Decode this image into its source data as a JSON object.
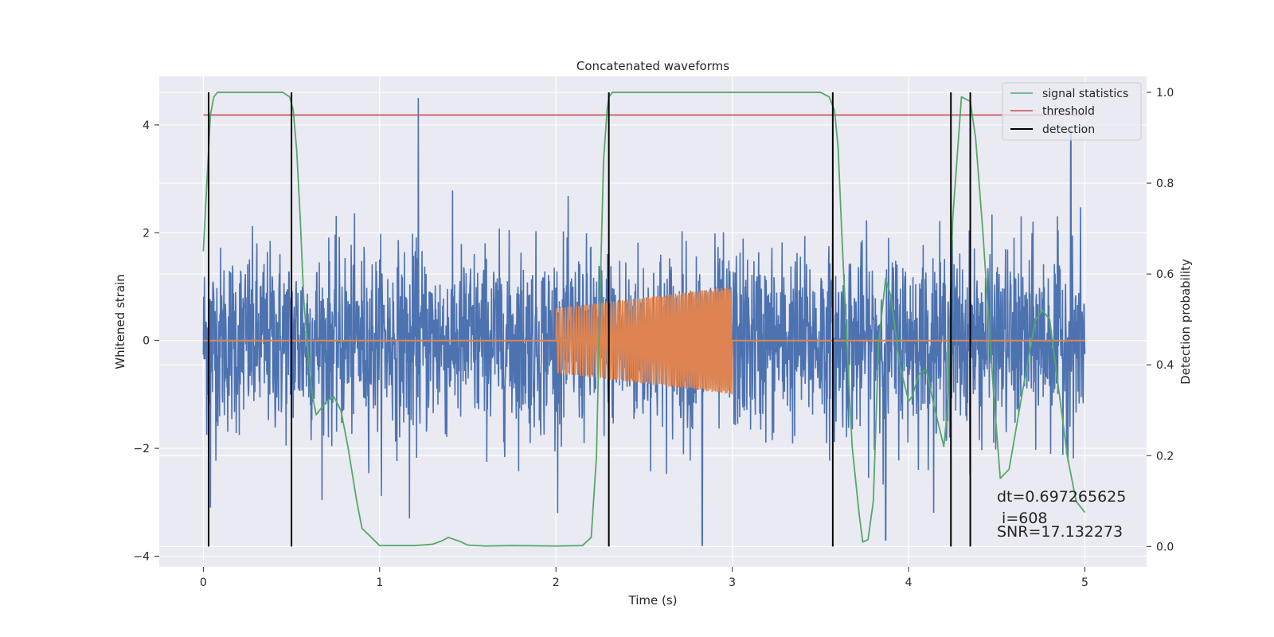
{
  "chart_data": {
    "type": "line",
    "title": "Concatenated waveforms",
    "xlabel": "Time (s)",
    "ylabel": "Whitened strain",
    "y2label": "Detection probability",
    "xlim": [
      -0.25,
      5.35
    ],
    "ylim": [
      -4.2,
      4.9
    ],
    "y2lim": [
      -0.045,
      1.035
    ],
    "xticks": [
      0,
      1,
      2,
      3,
      4,
      5
    ],
    "yticks": [
      -4,
      -2,
      0,
      2,
      4
    ],
    "y2ticks": [
      0.0,
      0.2,
      0.4,
      0.6,
      0.8,
      1.0
    ],
    "xtick_labels": [
      "0",
      "1",
      "2",
      "3",
      "4",
      "5"
    ],
    "ytick_labels": [
      "−4",
      "−2",
      "0",
      "2",
      "4"
    ],
    "y2tick_labels": [
      "0.0",
      "0.2",
      "0.4",
      "0.6",
      "0.8",
      "1.0"
    ],
    "grid": true,
    "legend_position": "top-right",
    "colors": {
      "background": "#eaeaf2",
      "grid": "#ffffff",
      "noise": "#4c72b0",
      "injection": "#dd8452",
      "signal_statistics": "#55a868",
      "threshold": "#c44e52",
      "detection": "#000000"
    },
    "series": [
      {
        "name": "",
        "axis": "left",
        "kind": "noise",
        "x_range": [
          0,
          5
        ],
        "typical_amplitude": 1.5,
        "peak_max": 4.5,
        "peak_min": -3.8,
        "notable_peaks": [
          [
            1.22,
            4.5
          ],
          [
            4.92,
            3.9
          ],
          [
            2.83,
            -3.8
          ],
          [
            1.17,
            -3.3
          ],
          [
            3.87,
            -3.7
          ],
          [
            0.04,
            -3.1
          ]
        ]
      },
      {
        "name": "",
        "axis": "left",
        "kind": "chirp",
        "x_range": [
          2.0,
          3.0
        ],
        "amplitude_start": 0.6,
        "amplitude_end": 1.0,
        "baseline": 0
      },
      {
        "name": "signal statistics",
        "axis": "right",
        "x": [
          0,
          0.02,
          0.04,
          0.06,
          0.08,
          0.1,
          0.15,
          0.3,
          0.45,
          0.49,
          0.51,
          0.53,
          0.55,
          0.57,
          0.6,
          0.62,
          0.64,
          0.66,
          0.7,
          0.74,
          0.78,
          0.82,
          0.87,
          0.9,
          1.0,
          1.2,
          1.3,
          1.35,
          1.39,
          1.45,
          1.5,
          1.6,
          1.75,
          2.0,
          2.15,
          2.2,
          2.23,
          2.25,
          2.27,
          2.29,
          2.3,
          2.32,
          2.36,
          2.5,
          3.0,
          3.5,
          3.55,
          3.58,
          3.6,
          3.62,
          3.65,
          3.68,
          3.72,
          3.74,
          3.77,
          3.8,
          3.83,
          3.87,
          3.9,
          3.95,
          4.0,
          4.02,
          4.06,
          4.1,
          4.15,
          4.2,
          4.22,
          4.25,
          4.3,
          4.35,
          4.38,
          4.42,
          4.48,
          4.52,
          4.57,
          4.65,
          4.72,
          4.76,
          4.8,
          4.85,
          4.9,
          4.95,
          5.0
        ],
        "values": [
          0.65,
          0.8,
          0.95,
          0.99,
          1.0,
          1.0,
          1.0,
          1.0,
          1.0,
          0.99,
          0.96,
          0.87,
          0.72,
          0.54,
          0.4,
          0.33,
          0.29,
          0.3,
          0.32,
          0.33,
          0.3,
          0.22,
          0.1,
          0.04,
          0.002,
          0.002,
          0.005,
          0.012,
          0.02,
          0.012,
          0.003,
          0.001,
          0.002,
          0.001,
          0.002,
          0.02,
          0.2,
          0.55,
          0.85,
          0.96,
          0.99,
          1.0,
          1.0,
          1.0,
          1.0,
          1.0,
          0.99,
          0.96,
          0.88,
          0.7,
          0.45,
          0.22,
          0.07,
          0.01,
          0.015,
          0.1,
          0.45,
          0.59,
          0.55,
          0.4,
          0.32,
          0.33,
          0.38,
          0.39,
          0.3,
          0.22,
          0.3,
          0.72,
          0.99,
          0.98,
          0.9,
          0.7,
          0.35,
          0.15,
          0.17,
          0.35,
          0.5,
          0.52,
          0.5,
          0.35,
          0.2,
          0.1,
          0.075
        ]
      },
      {
        "name": "threshold",
        "axis": "right",
        "x": [
          0,
          5.0
        ],
        "values": [
          0.95,
          0.95
        ]
      },
      {
        "name": "detection",
        "axis": "right",
        "kind": "vlines",
        "x": [
          0.03,
          0.5,
          2.3,
          3.57,
          4.24,
          4.35
        ],
        "ymin": 0.0,
        "ymax": 1.0
      }
    ],
    "annotations": [
      "dt=0.697265625",
      " i=608",
      "SNR=17.132273"
    ]
  }
}
